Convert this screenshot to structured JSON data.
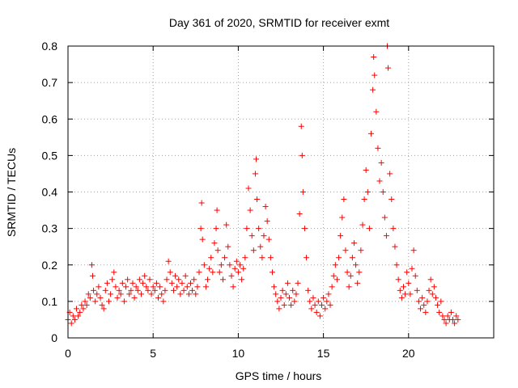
{
  "chart_data": {
    "type": "scatter",
    "title": "Day 361 of 2020, SRMTID for receiver exmt",
    "xlabel": "GPS time / hours",
    "ylabel": "SRMTID / TECUs",
    "xlim": [
      0,
      25
    ],
    "ylim": [
      0,
      0.8
    ],
    "x_ticks": [
      "0",
      "5",
      "10",
      "15",
      "20"
    ],
    "y_ticks": [
      "0",
      "0.1",
      "0.2",
      "0.3",
      "0.4",
      "0.5",
      "0.6",
      "0.7",
      "0.8"
    ],
    "x_tick_values": [
      0,
      5,
      10,
      15,
      20
    ],
    "y_tick_values": [
      0,
      0.1,
      0.2,
      0.3,
      0.4,
      0.5,
      0.6,
      0.7,
      0.8
    ],
    "grid": true,
    "marker": "+",
    "color": "#ff0000",
    "series": [
      {
        "name": "SRMTID",
        "points": [
          [
            0.0,
            0.05
          ],
          [
            0.1,
            0.07
          ],
          [
            0.2,
            0.04
          ],
          [
            0.3,
            0.06
          ],
          [
            0.4,
            0.05
          ],
          [
            0.5,
            0.08
          ],
          [
            0.6,
            0.06
          ],
          [
            0.7,
            0.07
          ],
          [
            0.8,
            0.09
          ],
          [
            0.9,
            0.08
          ],
          [
            1.0,
            0.1
          ],
          [
            1.1,
            0.09
          ],
          [
            1.2,
            0.12
          ],
          [
            1.3,
            0.11
          ],
          [
            1.4,
            0.2
          ],
          [
            1.45,
            0.17
          ],
          [
            1.5,
            0.13
          ],
          [
            1.6,
            0.1
          ],
          [
            1.7,
            0.12
          ],
          [
            1.8,
            0.14
          ],
          [
            1.9,
            0.11
          ],
          [
            2.0,
            0.09
          ],
          [
            2.1,
            0.08
          ],
          [
            2.2,
            0.13
          ],
          [
            2.3,
            0.15
          ],
          [
            2.4,
            0.1
          ],
          [
            2.5,
            0.12
          ],
          [
            2.6,
            0.16
          ],
          [
            2.7,
            0.18
          ],
          [
            2.8,
            0.14
          ],
          [
            2.9,
            0.11
          ],
          [
            3.0,
            0.13
          ],
          [
            3.1,
            0.12
          ],
          [
            3.2,
            0.15
          ],
          [
            3.3,
            0.1
          ],
          [
            3.4,
            0.14
          ],
          [
            3.5,
            0.16
          ],
          [
            3.6,
            0.12
          ],
          [
            3.7,
            0.13
          ],
          [
            3.8,
            0.15
          ],
          [
            3.9,
            0.11
          ],
          [
            4.0,
            0.14
          ],
          [
            4.1,
            0.13
          ],
          [
            4.2,
            0.16
          ],
          [
            4.3,
            0.12
          ],
          [
            4.4,
            0.15
          ],
          [
            4.5,
            0.17
          ],
          [
            4.6,
            0.14
          ],
          [
            4.7,
            0.13
          ],
          [
            4.8,
            0.16
          ],
          [
            4.9,
            0.12
          ],
          [
            5.0,
            0.14
          ],
          [
            5.1,
            0.13
          ],
          [
            5.2,
            0.15
          ],
          [
            5.3,
            0.11
          ],
          [
            5.4,
            0.14
          ],
          [
            5.5,
            0.12
          ],
          [
            5.6,
            0.1
          ],
          [
            5.7,
            0.13
          ],
          [
            5.8,
            0.16
          ],
          [
            5.9,
            0.21
          ],
          [
            6.0,
            0.18
          ],
          [
            6.1,
            0.15
          ],
          [
            6.2,
            0.13
          ],
          [
            6.3,
            0.17
          ],
          [
            6.4,
            0.14
          ],
          [
            6.5,
            0.16
          ],
          [
            6.6,
            0.12
          ],
          [
            6.7,
            0.15
          ],
          [
            6.8,
            0.13
          ],
          [
            6.9,
            0.17
          ],
          [
            7.0,
            0.14
          ],
          [
            7.1,
            0.12
          ],
          [
            7.2,
            0.15
          ],
          [
            7.3,
            0.13
          ],
          [
            7.4,
            0.16
          ],
          [
            7.5,
            0.12
          ],
          [
            7.6,
            0.14
          ],
          [
            7.7,
            0.18
          ],
          [
            7.8,
            0.3
          ],
          [
            7.85,
            0.37
          ],
          [
            7.9,
            0.27
          ],
          [
            8.0,
            0.2
          ],
          [
            8.1,
            0.14
          ],
          [
            8.2,
            0.16
          ],
          [
            8.3,
            0.19
          ],
          [
            8.4,
            0.22
          ],
          [
            8.5,
            0.18
          ],
          [
            8.6,
            0.26
          ],
          [
            8.7,
            0.3
          ],
          [
            8.75,
            0.35
          ],
          [
            8.8,
            0.24
          ],
          [
            8.9,
            0.18
          ],
          [
            9.0,
            0.2
          ],
          [
            9.1,
            0.16
          ],
          [
            9.2,
            0.22
          ],
          [
            9.3,
            0.31
          ],
          [
            9.4,
            0.25
          ],
          [
            9.5,
            0.2
          ],
          [
            9.6,
            0.17
          ],
          [
            9.7,
            0.14
          ],
          [
            9.8,
            0.19
          ],
          [
            9.9,
            0.21
          ],
          [
            10.0,
            0.18
          ],
          [
            10.1,
            0.2
          ],
          [
            10.2,
            0.16
          ],
          [
            10.3,
            0.19
          ],
          [
            10.4,
            0.22
          ],
          [
            10.5,
            0.3
          ],
          [
            10.6,
            0.41
          ],
          [
            10.7,
            0.35
          ],
          [
            10.8,
            0.28
          ],
          [
            10.9,
            0.24
          ],
          [
            11.0,
            0.45
          ],
          [
            11.05,
            0.49
          ],
          [
            11.1,
            0.38
          ],
          [
            11.2,
            0.3
          ],
          [
            11.3,
            0.25
          ],
          [
            11.4,
            0.22
          ],
          [
            11.5,
            0.28
          ],
          [
            11.6,
            0.36
          ],
          [
            11.7,
            0.32
          ],
          [
            11.8,
            0.27
          ],
          [
            11.9,
            0.22
          ],
          [
            12.0,
            0.18
          ],
          [
            12.1,
            0.14
          ],
          [
            12.2,
            0.12
          ],
          [
            12.3,
            0.1
          ],
          [
            12.4,
            0.08
          ],
          [
            12.5,
            0.11
          ],
          [
            12.6,
            0.13
          ],
          [
            12.7,
            0.09
          ],
          [
            12.8,
            0.12
          ],
          [
            12.9,
            0.15
          ],
          [
            13.0,
            0.11
          ],
          [
            13.1,
            0.09
          ],
          [
            13.2,
            0.13
          ],
          [
            13.3,
            0.1
          ],
          [
            13.4,
            0.12
          ],
          [
            13.5,
            0.15
          ],
          [
            13.6,
            0.34
          ],
          [
            13.7,
            0.58
          ],
          [
            13.75,
            0.5
          ],
          [
            13.8,
            0.4
          ],
          [
            13.9,
            0.3
          ],
          [
            14.0,
            0.22
          ],
          [
            14.1,
            0.13
          ],
          [
            14.2,
            0.1
          ],
          [
            14.3,
            0.08
          ],
          [
            14.4,
            0.11
          ],
          [
            14.5,
            0.09
          ],
          [
            14.6,
            0.07
          ],
          [
            14.7,
            0.1
          ],
          [
            14.8,
            0.06
          ],
          [
            14.9,
            0.09
          ],
          [
            15.0,
            0.11
          ],
          [
            15.1,
            0.08
          ],
          [
            15.2,
            0.1
          ],
          [
            15.3,
            0.12
          ],
          [
            15.4,
            0.09
          ],
          [
            15.5,
            0.14
          ],
          [
            15.6,
            0.17
          ],
          [
            15.7,
            0.2
          ],
          [
            15.8,
            0.16
          ],
          [
            15.9,
            0.22
          ],
          [
            16.0,
            0.28
          ],
          [
            16.1,
            0.33
          ],
          [
            16.2,
            0.38
          ],
          [
            16.3,
            0.24
          ],
          [
            16.4,
            0.18
          ],
          [
            16.5,
            0.14
          ],
          [
            16.6,
            0.17
          ],
          [
            16.7,
            0.22
          ],
          [
            16.8,
            0.26
          ],
          [
            16.9,
            0.2
          ],
          [
            17.0,
            0.15
          ],
          [
            17.1,
            0.18
          ],
          [
            17.2,
            0.24
          ],
          [
            17.3,
            0.31
          ],
          [
            17.4,
            0.38
          ],
          [
            17.5,
            0.46
          ],
          [
            17.6,
            0.4
          ],
          [
            17.7,
            0.3
          ],
          [
            17.8,
            0.56
          ],
          [
            17.9,
            0.68
          ],
          [
            17.95,
            0.77
          ],
          [
            18.0,
            0.72
          ],
          [
            18.1,
            0.62
          ],
          [
            18.2,
            0.52
          ],
          [
            18.3,
            0.43
          ],
          [
            18.4,
            0.48
          ],
          [
            18.5,
            0.4
          ],
          [
            18.6,
            0.33
          ],
          [
            18.7,
            0.28
          ],
          [
            18.75,
            0.8
          ],
          [
            18.8,
            0.74
          ],
          [
            18.9,
            0.45
          ],
          [
            19.0,
            0.38
          ],
          [
            19.1,
            0.3
          ],
          [
            19.2,
            0.25
          ],
          [
            19.3,
            0.2
          ],
          [
            19.4,
            0.16
          ],
          [
            19.5,
            0.13
          ],
          [
            19.6,
            0.11
          ],
          [
            19.7,
            0.14
          ],
          [
            19.8,
            0.12
          ],
          [
            19.9,
            0.18
          ],
          [
            20.0,
            0.15
          ],
          [
            20.1,
            0.12
          ],
          [
            20.2,
            0.19
          ],
          [
            20.3,
            0.24
          ],
          [
            20.4,
            0.17
          ],
          [
            20.5,
            0.13
          ],
          [
            20.6,
            0.1
          ],
          [
            20.7,
            0.08
          ],
          [
            20.8,
            0.11
          ],
          [
            20.9,
            0.09
          ],
          [
            21.0,
            0.07
          ],
          [
            21.1,
            0.1
          ],
          [
            21.2,
            0.13
          ],
          [
            21.3,
            0.16
          ],
          [
            21.4,
            0.12
          ],
          [
            21.5,
            0.14
          ],
          [
            21.6,
            0.11
          ],
          [
            21.7,
            0.09
          ],
          [
            21.8,
            0.07
          ],
          [
            21.9,
            0.1
          ],
          [
            22.0,
            0.06
          ],
          [
            22.1,
            0.05
          ],
          [
            22.2,
            0.04
          ],
          [
            22.3,
            0.06
          ],
          [
            22.4,
            0.05
          ],
          [
            22.5,
            0.07
          ],
          [
            22.6,
            0.05
          ],
          [
            22.7,
            0.04
          ],
          [
            22.8,
            0.06
          ],
          [
            22.9,
            0.05
          ]
        ]
      }
    ]
  }
}
